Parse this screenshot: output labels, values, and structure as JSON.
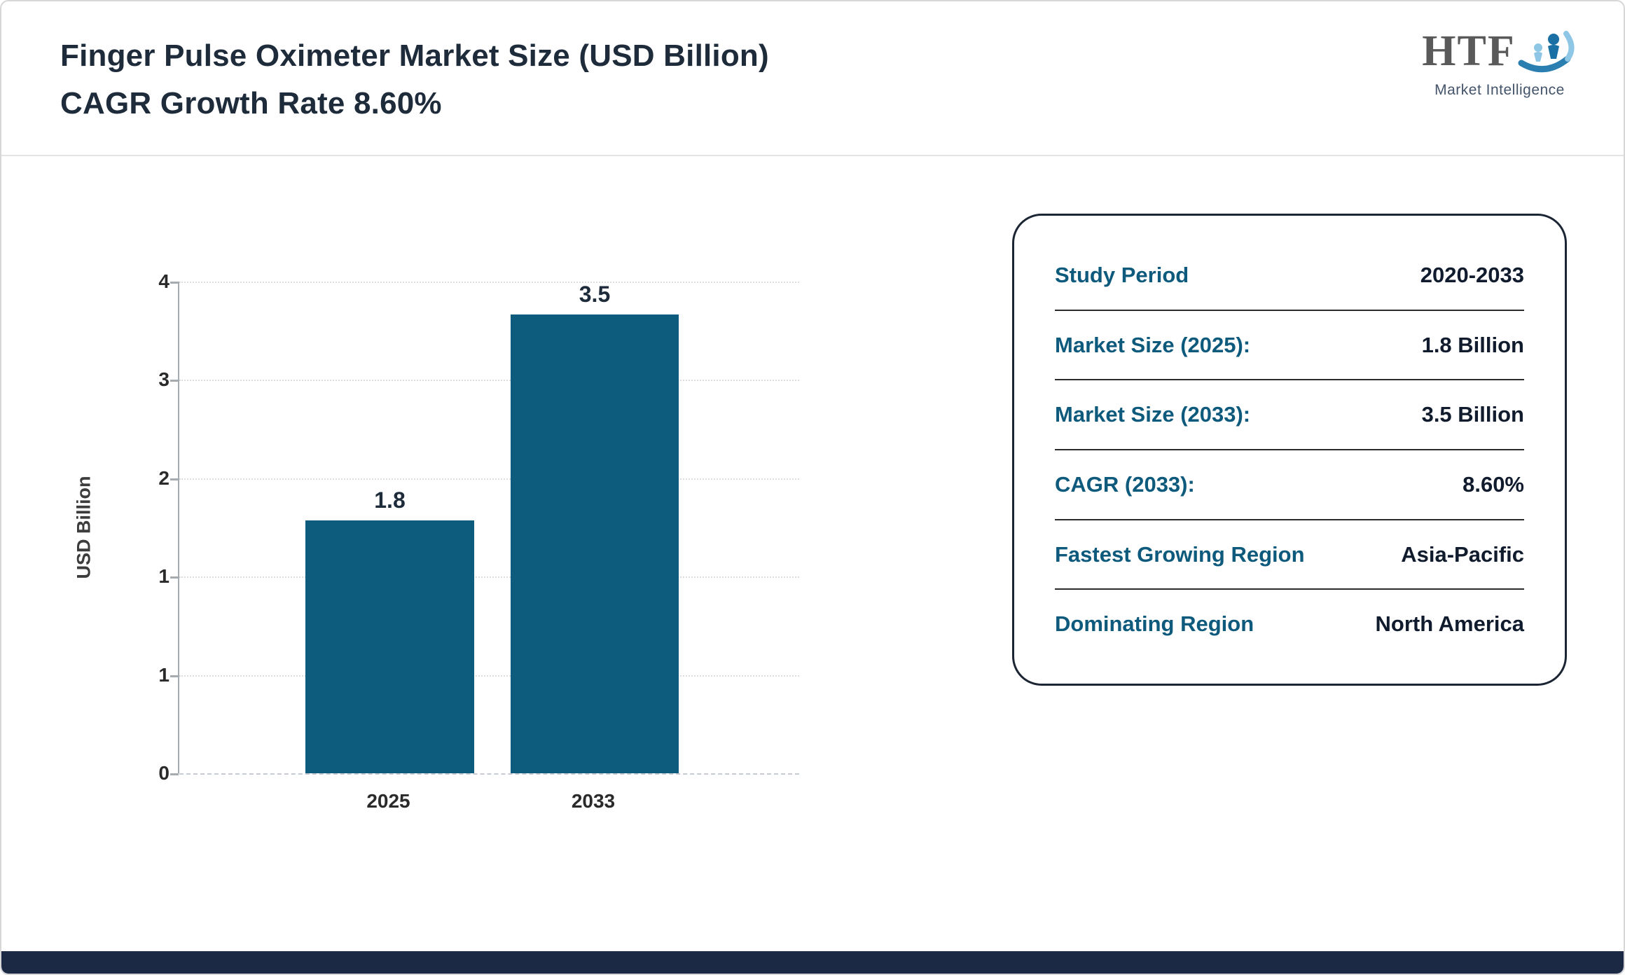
{
  "header": {
    "title_line1": "Finger Pulse Oximeter Market Size (USD Billion)",
    "title_line2": "CAGR Growth Rate 8.60%",
    "logo": {
      "text": "HTF",
      "subtext": "Market Intelligence"
    }
  },
  "chart_data": {
    "type": "bar",
    "categories": [
      "2025",
      "2033"
    ],
    "values": [
      1.8,
      3.5
    ],
    "value_labels": [
      "1.8",
      "3.5"
    ],
    "title": "Finger Pulse Oximeter Market Size (USD Billion)",
    "xlabel": "",
    "ylabel": "USD Billion",
    "ylim": [
      0,
      3.5
    ],
    "ytick_values": [
      3.5,
      2.8,
      2.1,
      1.4,
      0.7,
      0
    ],
    "ytick_labels": [
      "4",
      "3",
      "2",
      "1",
      "1",
      "0"
    ],
    "grid": true,
    "legend": false,
    "bar_color": "#0d5c7d"
  },
  "summary_card": {
    "rows": [
      {
        "label": "Study Period",
        "value": "2020-2033"
      },
      {
        "label": "Market Size (2025):",
        "value": "1.8 Billion"
      },
      {
        "label": "Market Size (2033):",
        "value": "3.5 Billion"
      },
      {
        "label": "CAGR (2033):",
        "value": "8.60%"
      },
      {
        "label": "Fastest Growing Region",
        "value": "Asia-Pacific"
      },
      {
        "label": "Dominating Region",
        "value": "North America"
      }
    ],
    "label_color": "#0e5a7d",
    "value_color": "#101b2d"
  },
  "footer": {
    "bar_color": "#1b2944"
  }
}
